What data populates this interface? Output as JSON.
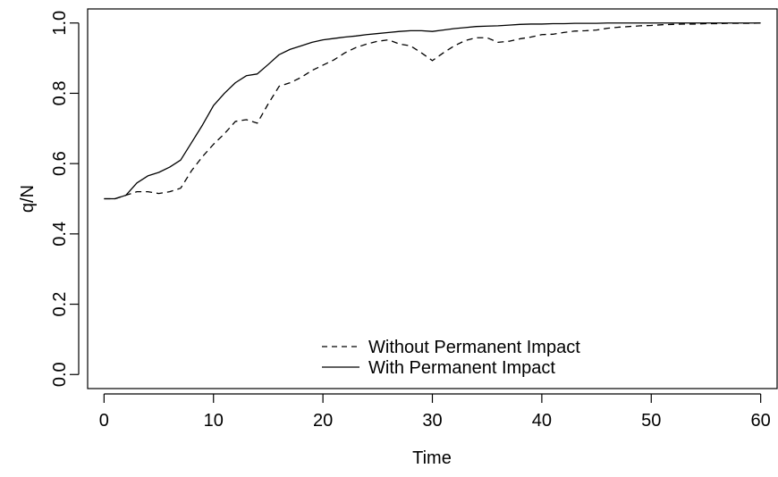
{
  "chart_data": {
    "type": "line",
    "title": "",
    "xlabel": "Time",
    "ylabel": "q/N",
    "xlim": [
      -1.5,
      61.5
    ],
    "ylim": [
      -0.04,
      1.04
    ],
    "x_ticks": [
      0,
      10,
      20,
      30,
      40,
      50,
      60
    ],
    "y_ticks": [
      0.0,
      0.2,
      0.4,
      0.6,
      0.8,
      1.0
    ],
    "x_tick_labels": [
      "0",
      "10",
      "20",
      "30",
      "40",
      "50",
      "60"
    ],
    "y_tick_labels": [
      "0.0",
      "0.2",
      "0.4",
      "0.6",
      "0.8",
      "1.0"
    ],
    "grid": false,
    "legend_position": "bottom-center",
    "series": [
      {
        "name": "Without Permanent Impact",
        "line_style": "dashed",
        "color": "#000000",
        "x": [
          0,
          1,
          2,
          3,
          4,
          5,
          6,
          7,
          8,
          9,
          10,
          11,
          12,
          13,
          14,
          15,
          16,
          17,
          18,
          19,
          20,
          21,
          22,
          23,
          24,
          25,
          26,
          27,
          28,
          29,
          30,
          31,
          32,
          33,
          34,
          35,
          36,
          37,
          38,
          39,
          40,
          41,
          42,
          43,
          44,
          45,
          46,
          47,
          48,
          49,
          50,
          51,
          52,
          53,
          54,
          55,
          56,
          57,
          58,
          59,
          60
        ],
        "y": [
          0.5,
          0.5,
          0.51,
          0.52,
          0.52,
          0.515,
          0.52,
          0.53,
          0.58,
          0.62,
          0.655,
          0.685,
          0.72,
          0.725,
          0.715,
          0.77,
          0.82,
          0.83,
          0.845,
          0.865,
          0.88,
          0.895,
          0.915,
          0.93,
          0.94,
          0.948,
          0.952,
          0.94,
          0.935,
          0.915,
          0.893,
          0.915,
          0.935,
          0.95,
          0.958,
          0.958,
          0.945,
          0.948,
          0.955,
          0.96,
          0.967,
          0.968,
          0.973,
          0.977,
          0.978,
          0.98,
          0.985,
          0.988,
          0.99,
          0.992,
          0.993,
          0.995,
          0.996,
          0.997,
          0.997,
          0.998,
          0.998,
          0.999,
          0.999,
          0.999,
          1.0
        ]
      },
      {
        "name": "With Permanent Impact",
        "line_style": "solid",
        "color": "#000000",
        "x": [
          0,
          1,
          2,
          3,
          4,
          5,
          6,
          7,
          8,
          9,
          10,
          11,
          12,
          13,
          14,
          15,
          16,
          17,
          18,
          19,
          20,
          21,
          22,
          23,
          24,
          25,
          26,
          27,
          28,
          29,
          30,
          31,
          32,
          33,
          34,
          35,
          36,
          37,
          38,
          39,
          40,
          41,
          42,
          43,
          44,
          45,
          46,
          47,
          48,
          49,
          50,
          51,
          52,
          53,
          54,
          55,
          56,
          57,
          58,
          59,
          60
        ],
        "y": [
          0.5,
          0.5,
          0.51,
          0.545,
          0.565,
          0.575,
          0.59,
          0.61,
          0.66,
          0.71,
          0.765,
          0.8,
          0.83,
          0.85,
          0.855,
          0.882,
          0.91,
          0.925,
          0.935,
          0.945,
          0.952,
          0.956,
          0.96,
          0.963,
          0.967,
          0.97,
          0.973,
          0.976,
          0.978,
          0.978,
          0.976,
          0.98,
          0.984,
          0.987,
          0.99,
          0.991,
          0.992,
          0.994,
          0.996,
          0.997,
          0.997,
          0.998,
          0.998,
          0.999,
          0.999,
          0.999,
          1.0,
          1.0,
          1.0,
          1.0,
          1.0,
          1.0,
          1.0,
          1.0,
          1.0,
          1.0,
          1.0,
          1.0,
          1.0,
          1.0,
          1.0
        ]
      }
    ]
  }
}
